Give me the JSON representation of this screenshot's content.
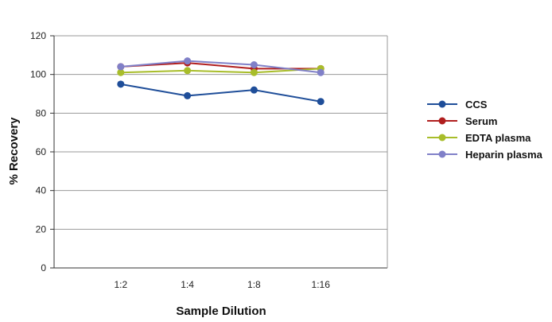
{
  "chart_data": {
    "type": "line",
    "title": "",
    "xlabel": "Sample Dilution",
    "ylabel": "% Recovery",
    "categories": [
      "1:2",
      "1:4",
      "1:8",
      "1:16"
    ],
    "ylim": [
      0,
      120
    ],
    "yticks": [
      0,
      20,
      40,
      60,
      80,
      100,
      120
    ],
    "grid": true,
    "legend_position": "right",
    "series": [
      {
        "name": "CCS",
        "color": "#1f4e99",
        "values": [
          95,
          89,
          92,
          86
        ]
      },
      {
        "name": "Serum",
        "color": "#b01e1e",
        "values": [
          104,
          106,
          103,
          103
        ]
      },
      {
        "name": "EDTA plasma",
        "color": "#a8bd2a",
        "values": [
          101,
          102,
          101,
          103
        ]
      },
      {
        "name": "Heparin plasma",
        "color": "#8080c8",
        "values": [
          104,
          107,
          105,
          101
        ]
      }
    ]
  }
}
